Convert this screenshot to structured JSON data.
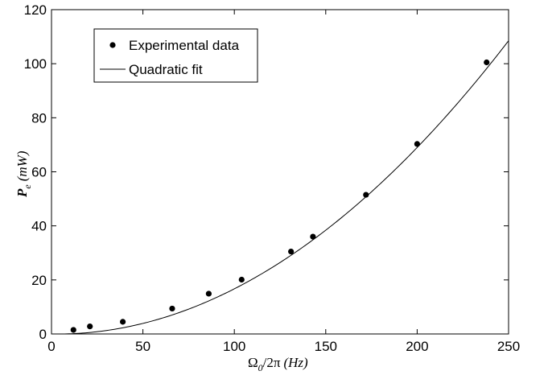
{
  "chart_data": {
    "type": "scatter",
    "title": "",
    "xlabel": {
      "omega": "Ω",
      "omega_sub": "0",
      "rest": "/2π",
      "units": "(Hz)"
    },
    "ylabel": {
      "p": "P",
      "p_sub": "e",
      "units": "(mW)"
    },
    "xlim": [
      0,
      250
    ],
    "ylim": [
      0,
      120
    ],
    "xticks": [
      0,
      50,
      100,
      150,
      200,
      250
    ],
    "yticks": [
      0,
      20,
      40,
      60,
      80,
      100,
      120
    ],
    "legend": {
      "position": "top-left",
      "entries": [
        "Experimental data",
        "Quadratic fit"
      ]
    },
    "series": [
      {
        "name": "Experimental data",
        "kind": "points",
        "points": [
          [
            12,
            1.5
          ],
          [
            21,
            2.8
          ],
          [
            39,
            4.5
          ],
          [
            66,
            9.4
          ],
          [
            86,
            14.9
          ],
          [
            104,
            20.1
          ],
          [
            131,
            30.5
          ],
          [
            143,
            36.0
          ],
          [
            172,
            51.5
          ],
          [
            200,
            70.3
          ],
          [
            238,
            100.5
          ]
        ]
      },
      {
        "name": "Quadratic fit",
        "kind": "line",
        "coefficients": {
          "a": 0.00178,
          "b": -0.011,
          "c": 0.0
        },
        "x_range": [
          6,
          250
        ]
      }
    ],
    "grid": false
  }
}
